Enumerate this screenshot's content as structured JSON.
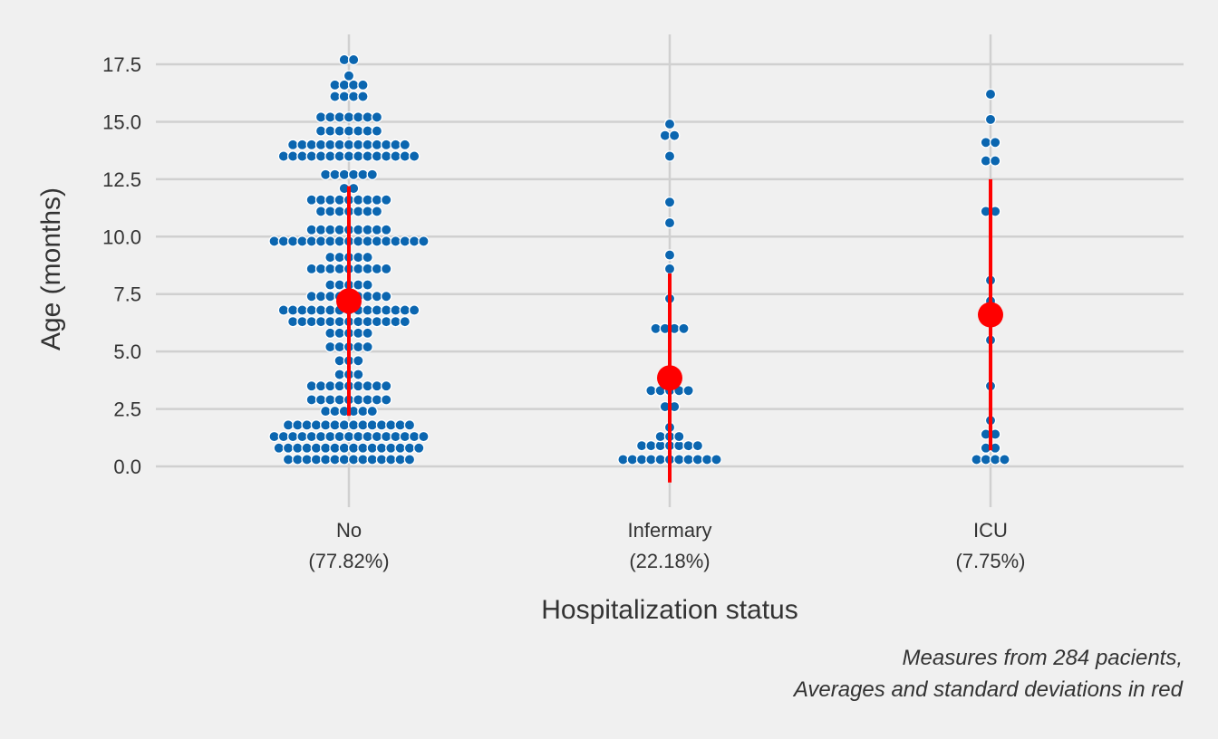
{
  "chart_data": {
    "type": "scatter",
    "subtype": "swarm",
    "ylabel": "Age (months)",
    "xlabel": "Hospitalization status",
    "ylim": [
      -1.7,
      18.8
    ],
    "yticks": [
      "0.0",
      "2.5",
      "5.0",
      "7.5",
      "10.0",
      "12.5",
      "15.0",
      "17.5"
    ],
    "grid": true,
    "point_color": "#0b66b0",
    "summary_color": "#ff0000",
    "caption_lines": [
      "Measures from 284 pacients,",
      "Averages and standard deviations in red"
    ],
    "categories": [
      {
        "name": "No",
        "pct": "(77.82%)",
        "mean": 7.2,
        "sd_low": 2.2,
        "sd_high": 12.2,
        "points": [
          [
            0.3,
            14
          ],
          [
            0.8,
            16
          ],
          [
            1.3,
            17
          ],
          [
            1.8,
            14
          ],
          [
            2.4,
            6
          ],
          [
            2.9,
            9
          ],
          [
            3.5,
            9
          ],
          [
            4.0,
            3
          ],
          [
            4.6,
            3
          ],
          [
            5.2,
            5
          ],
          [
            5.8,
            5
          ],
          [
            6.3,
            13
          ],
          [
            6.8,
            15
          ],
          [
            7.4,
            9
          ],
          [
            7.9,
            5
          ],
          [
            8.6,
            9
          ],
          [
            9.1,
            5
          ],
          [
            9.8,
            17
          ],
          [
            10.3,
            9
          ],
          [
            11.1,
            7
          ],
          [
            11.6,
            9
          ],
          [
            12.1,
            2
          ],
          [
            12.7,
            6
          ],
          [
            13.5,
            15
          ],
          [
            14.0,
            13
          ],
          [
            14.6,
            7
          ],
          [
            15.2,
            7
          ],
          [
            16.1,
            4
          ],
          [
            16.6,
            4
          ],
          [
            17.0,
            1
          ],
          [
            17.7,
            2
          ]
        ]
      },
      {
        "name": "Infermary",
        "pct": "(22.18%)",
        "mean": 3.85,
        "sd_low": -0.7,
        "sd_high": 8.4,
        "points": [
          [
            0.3,
            11
          ],
          [
            0.9,
            7
          ],
          [
            1.3,
            3
          ],
          [
            1.7,
            1
          ],
          [
            2.6,
            2
          ],
          [
            3.3,
            5
          ],
          [
            6.0,
            4
          ],
          [
            7.3,
            1
          ],
          [
            8.6,
            1
          ],
          [
            9.2,
            1
          ],
          [
            10.6,
            1
          ],
          [
            11.5,
            1
          ],
          [
            13.5,
            1
          ],
          [
            14.4,
            2
          ],
          [
            14.9,
            1
          ]
        ]
      },
      {
        "name": "ICU",
        "pct": "(7.75%)",
        "mean": 6.6,
        "sd_low": 0.7,
        "sd_high": 12.5,
        "points": [
          [
            0.3,
            4
          ],
          [
            0.8,
            2
          ],
          [
            1.4,
            2
          ],
          [
            2.0,
            1
          ],
          [
            3.5,
            1
          ],
          [
            5.5,
            1
          ],
          [
            7.2,
            1
          ],
          [
            8.1,
            1
          ],
          [
            11.1,
            2
          ],
          [
            13.3,
            2
          ],
          [
            14.1,
            2
          ],
          [
            15.1,
            1
          ],
          [
            16.2,
            1
          ]
        ]
      }
    ]
  }
}
